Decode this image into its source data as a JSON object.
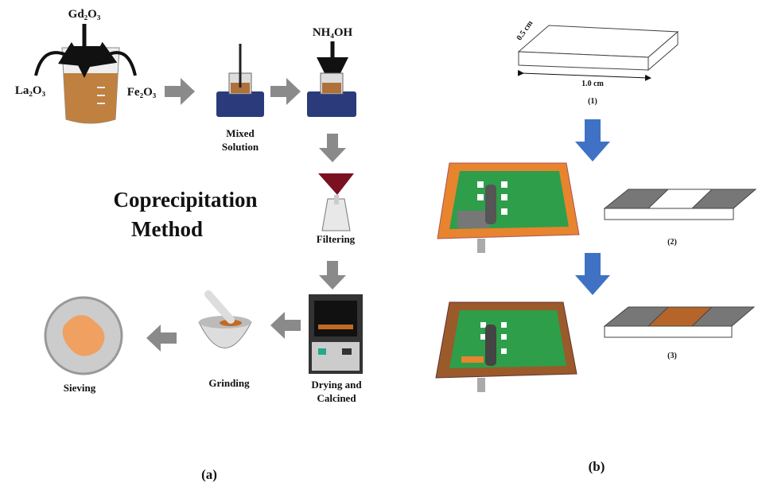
{
  "panel_a": {
    "reagents": [
      "Gd₂O₃",
      "La₂O₃",
      "Fe₂O₃",
      "NH₄OH"
    ],
    "steps": [
      {
        "label": [
          "Mixed",
          "Solution"
        ]
      },
      {
        "label": [
          "Filtering"
        ]
      },
      {
        "label": [
          "Drying and",
          "Calcined"
        ]
      },
      {
        "label": [
          "Grinding"
        ]
      },
      {
        "label": [
          "Sieving"
        ]
      }
    ],
    "title": [
      "Coprecipitation",
      "Method"
    ],
    "caption": "(a)"
  },
  "panel_b": {
    "dimensions": [
      "0.5 cm",
      "1.0 cm"
    ],
    "stages": [
      "(1)",
      "(2)",
      "(3)"
    ],
    "caption": "(b)"
  }
}
